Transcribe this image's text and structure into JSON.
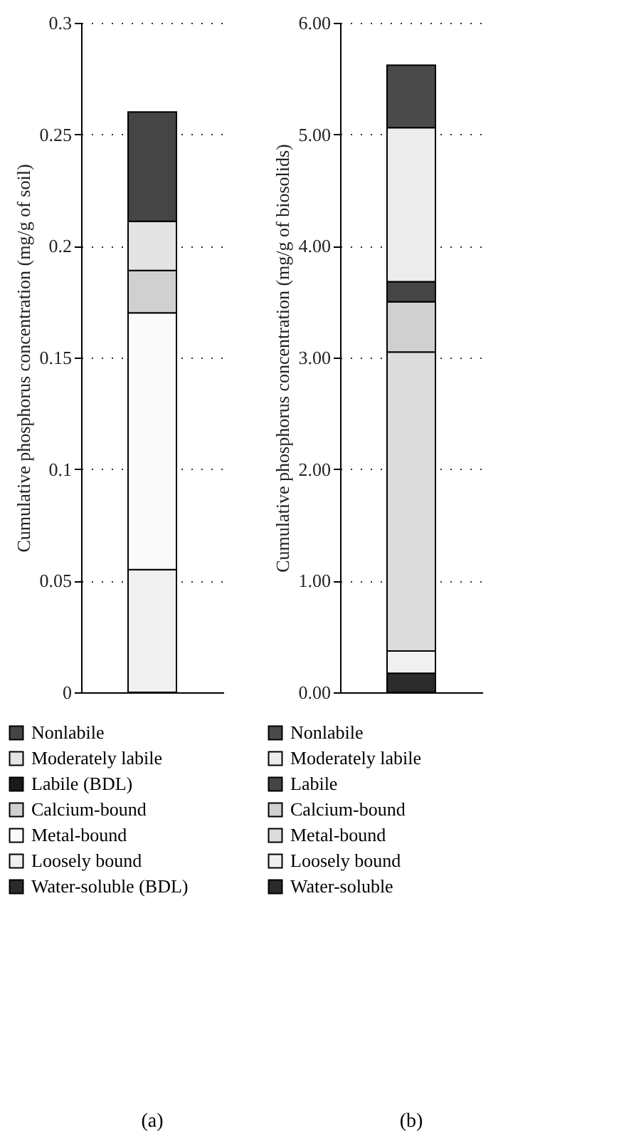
{
  "chart_data": [
    {
      "type": "bar",
      "title": "(a)",
      "ylabel": "Cumulative phosphorus concentration (mg/g of soil)",
      "categories": [
        null
      ],
      "stacked": true,
      "ylim": [
        0,
        0.3
      ],
      "yticks": [
        0,
        0.05,
        0.1,
        0.15,
        0.2,
        0.25,
        0.3
      ],
      "grid": "y",
      "legend": "bottom",
      "tick_labels": "y",
      "series": [
        {
          "name": "Water-soluble (BDL)",
          "color": "#2b2b2b",
          "values": [
            0
          ]
        },
        {
          "name": "Loosely bound",
          "color": "#f0f0f0",
          "values": [
            0.055
          ]
        },
        {
          "name": "Metal-bound",
          "color": "#fafafa",
          "values": [
            0.115
          ]
        },
        {
          "name": "Calcium-bound",
          "color": "#d0d0d0",
          "values": [
            0.019
          ]
        },
        {
          "name": "Labile (BDL)",
          "color": "#1a1a1a",
          "values": [
            0
          ]
        },
        {
          "name": "Moderately labile",
          "color": "#e4e4e4",
          "values": [
            0.022
          ]
        },
        {
          "name": "Nonlabile",
          "color": "#454545",
          "values": [
            0.049
          ]
        }
      ]
    },
    {
      "type": "bar",
      "title": "(b)",
      "ylabel": "Cumulative phosphorus concentration (mg/g of biosolids)",
      "categories": [
        null
      ],
      "stacked": true,
      "ylim": [
        0,
        6
      ],
      "yticks": [
        {
          "value": 0,
          "label": "0.00"
        },
        {
          "value": 1,
          "label": "1.00"
        },
        {
          "value": 2,
          "label": "2.00"
        },
        {
          "value": 3,
          "label": "3.00"
        },
        {
          "value": 4,
          "label": "4.00"
        },
        {
          "value": 5,
          "label": "5.00"
        },
        {
          "value": 6,
          "label": "6.00"
        }
      ],
      "grid": "y",
      "legend": "bottom",
      "tick_labels": "y",
      "series": [
        {
          "name": "Water-soluble",
          "color": "#2b2b2b",
          "values": [
            0.17
          ]
        },
        {
          "name": "Loosely bound",
          "color": "#f0f0f0",
          "values": [
            0.2
          ]
        },
        {
          "name": "Metal-bound",
          "color": "#dcdcdc",
          "values": [
            2.68
          ]
        },
        {
          "name": "Calcium-bound",
          "color": "#d0d0d0",
          "values": [
            0.45
          ]
        },
        {
          "name": "Labile",
          "color": "#454545",
          "values": [
            0.18
          ]
        },
        {
          "name": "Moderately labile",
          "color": "#ececec",
          "values": [
            1.38
          ]
        },
        {
          "name": "Nonlabile",
          "color": "#4a4a4a",
          "values": [
            0.56
          ]
        }
      ]
    }
  ]
}
